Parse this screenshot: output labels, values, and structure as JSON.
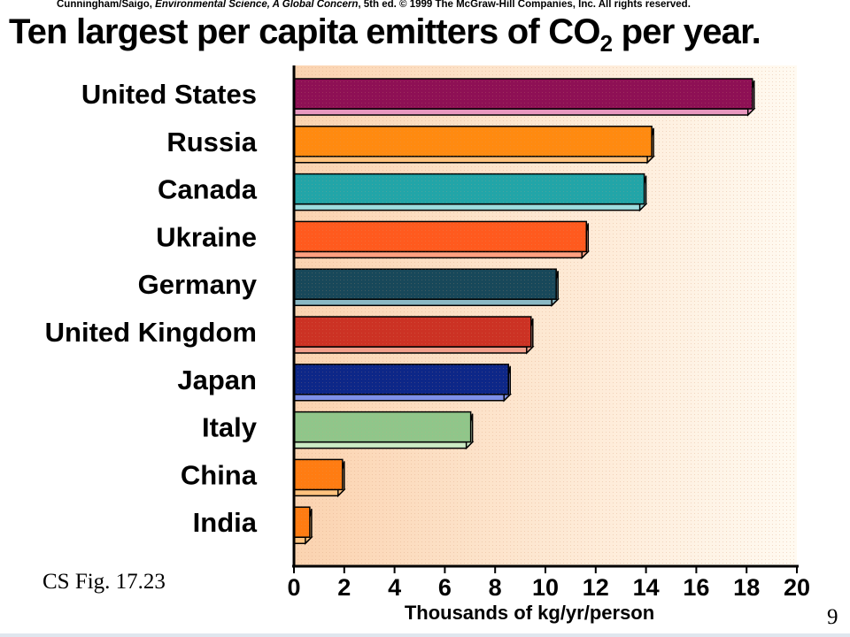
{
  "header": {
    "credit_author": "Cunningham/Saigo, ",
    "credit_book": "Environmental Science, A Global Concern",
    "credit_rest": ", 5th ed. © 1999 The McGraw-Hill Companies, Inc. All rights reserved."
  },
  "title_main": "Ten largest per capita emitters of CO",
  "title_subscript": "2",
  "title_tail": " per year.",
  "chart_data": {
    "type": "bar",
    "orientation": "horizontal",
    "title": "Ten largest per capita emitters of CO2 per year.",
    "categories": [
      "United States",
      "Russia",
      "Canada",
      "Ukraine",
      "Germany",
      "United Kingdom",
      "Japan",
      "Italy",
      "China",
      "India"
    ],
    "values": [
      18.3,
      14.3,
      14.0,
      11.7,
      10.5,
      9.5,
      8.6,
      7.1,
      2.0,
      0.7
    ],
    "xlabel": "Thousands of kg/yr/person",
    "ylabel": "",
    "xlim": [
      0,
      20
    ],
    "xticks": [
      "0",
      "2",
      "4",
      "6",
      "8",
      "10",
      "12",
      "14",
      "16",
      "18",
      "20"
    ],
    "grid": false,
    "legend": "none",
    "bar_colors": [
      "#8e1055",
      "#ff8a10",
      "#22a5a8",
      "#ff5a1e",
      "#18485a",
      "#cc3224",
      "#0d2788",
      "#90c68a",
      "#ff7c12",
      "#ff7c12"
    ],
    "bar_highlight_colors": [
      "#e898c0",
      "#ffc27e",
      "#9edcde",
      "#ffa080",
      "#8ab8c4",
      "#f2a08c",
      "#7e90e8",
      "#ccebc4",
      "#ffc27e",
      "#ffc27e"
    ]
  },
  "footer": {
    "figure_ref": "CS Fig. 17.23",
    "page_number": "9"
  }
}
